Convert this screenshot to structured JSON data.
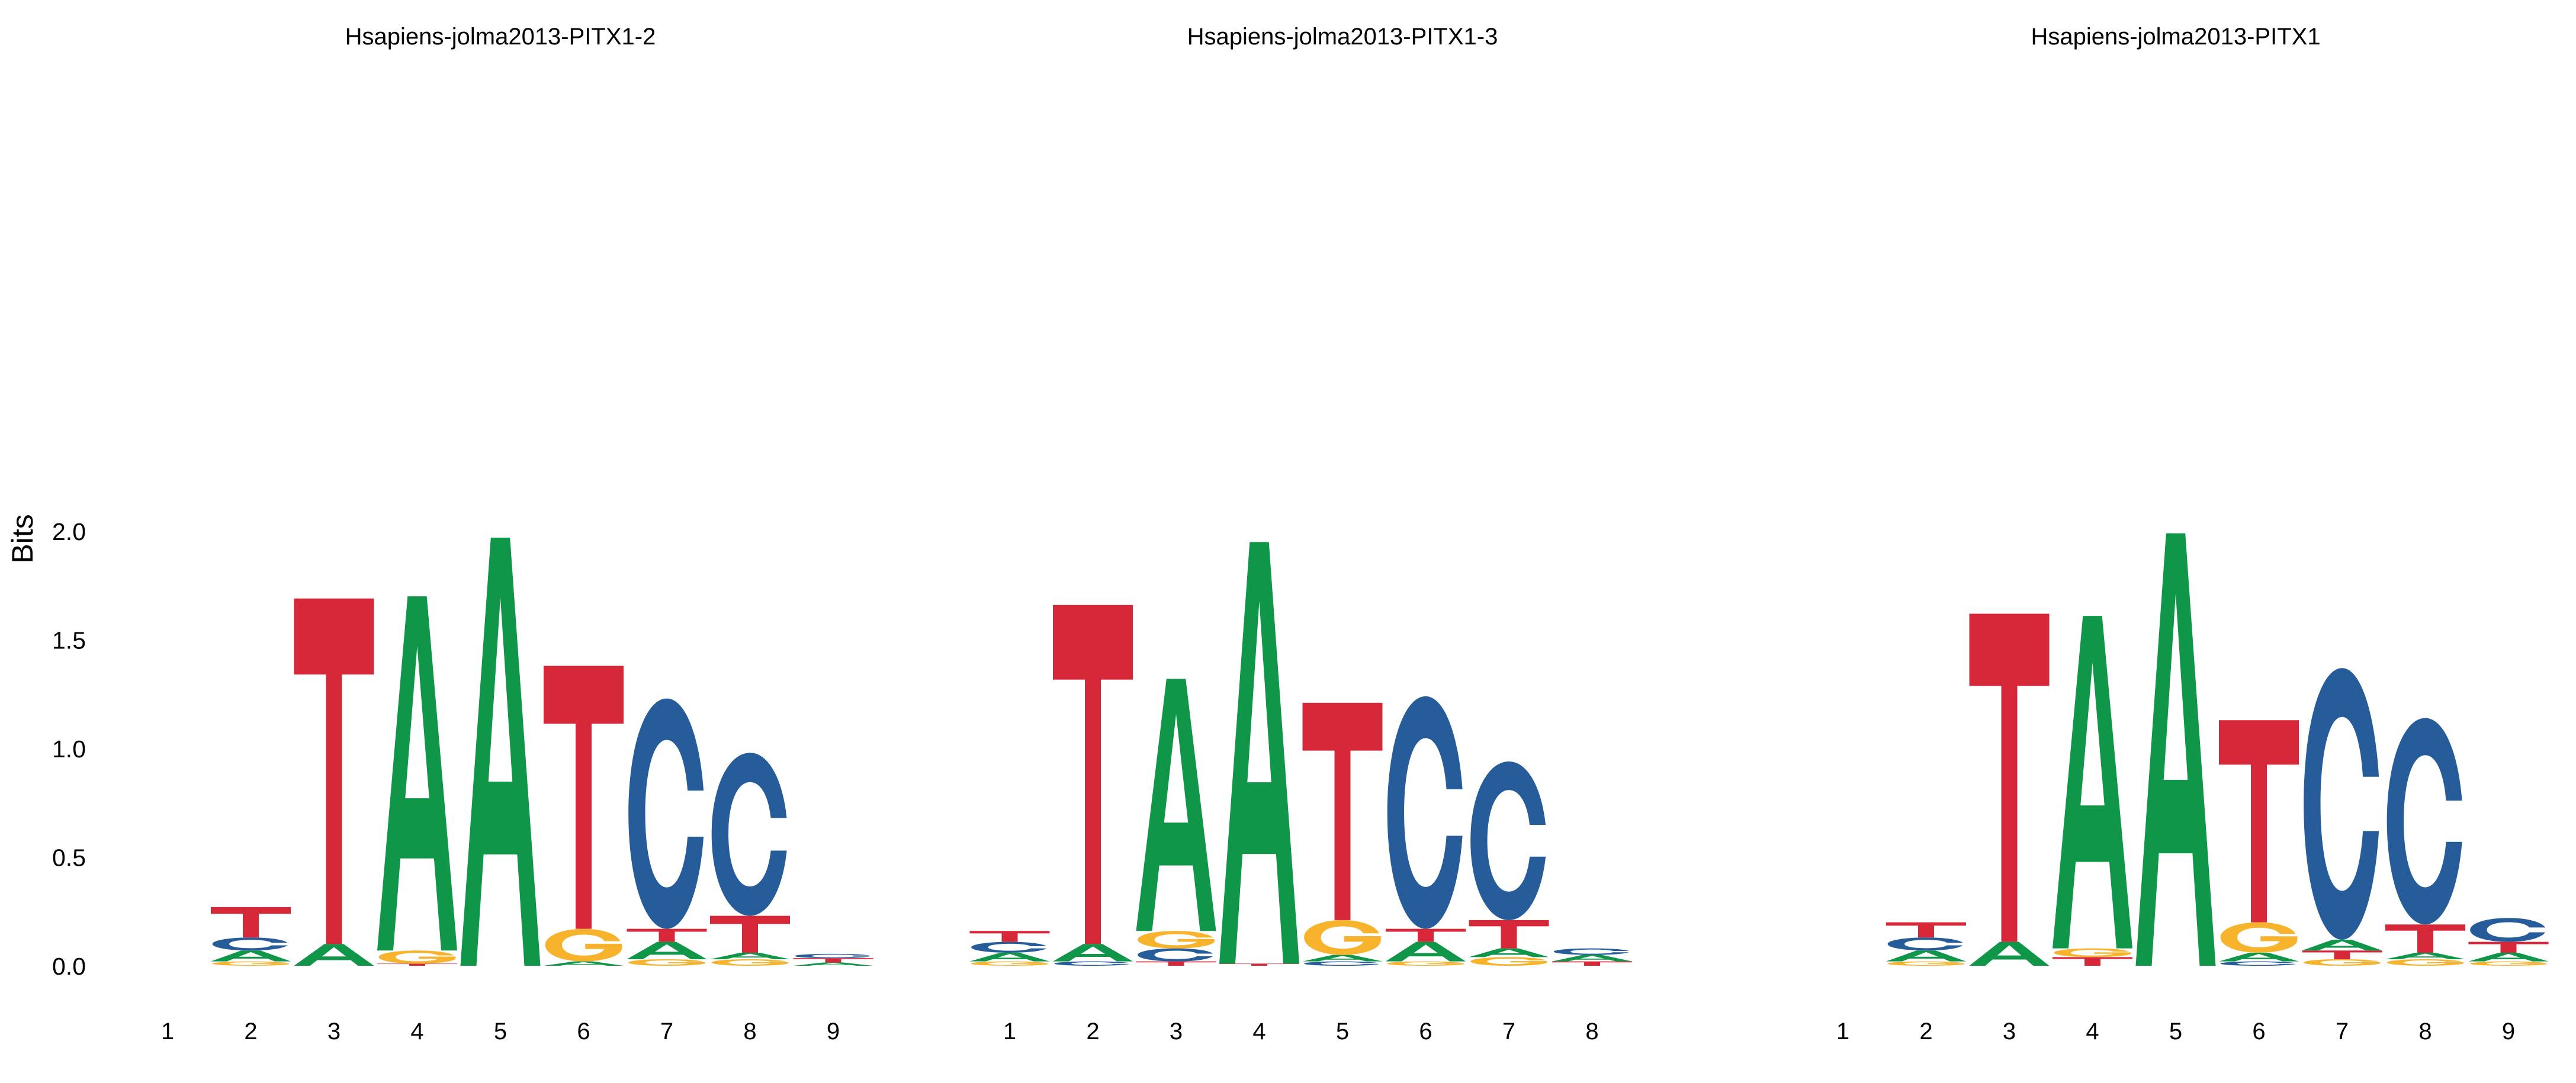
{
  "chart_data": {
    "type": "sequence-logo",
    "ylabel": "Bits",
    "ylim": [
      0,
      2
    ],
    "yticks": [
      "0.0",
      "0.5",
      "1.0",
      "1.5",
      "2.0"
    ],
    "colors": {
      "A": "#109648",
      "C": "#255C99",
      "G": "#F7B32B",
      "T": "#D62839"
    },
    "panels": [
      {
        "title": "Hsapiens-jolma2013-PITX1-2",
        "positions": [
          {
            "label": "1",
            "stack": []
          },
          {
            "label": "2",
            "stack": [
              [
                "G",
                0.02
              ],
              [
                "A",
                0.05
              ],
              [
                "C",
                0.06
              ],
              [
                "T",
                0.14
              ]
            ]
          },
          {
            "label": "3",
            "stack": [
              [
                "A",
                0.1
              ],
              [
                "T",
                1.59
              ]
            ]
          },
          {
            "label": "4",
            "stack": [
              [
                "T",
                0.01
              ],
              [
                "G",
                0.06
              ],
              [
                "A",
                1.63
              ]
            ]
          },
          {
            "label": "5",
            "stack": [
              [
                "A",
                1.97
              ]
            ]
          },
          {
            "label": "6",
            "stack": [
              [
                "A",
                0.02
              ],
              [
                "G",
                0.15
              ],
              [
                "T",
                1.21
              ]
            ]
          },
          {
            "label": "7",
            "stack": [
              [
                "G",
                0.03
              ],
              [
                "A",
                0.08
              ],
              [
                "T",
                0.06
              ],
              [
                "C",
                1.06
              ]
            ]
          },
          {
            "label": "8",
            "stack": [
              [
                "G",
                0.03
              ],
              [
                "A",
                0.03
              ],
              [
                "T",
                0.17
              ],
              [
                "C",
                0.75
              ]
            ]
          },
          {
            "label": "9",
            "stack": [
              [
                "A",
                0.015
              ],
              [
                "T",
                0.02
              ],
              [
                "C",
                0.02
              ]
            ]
          }
        ]
      },
      {
        "title": "Hsapiens-jolma2013-PITX1-3",
        "positions": [
          {
            "label": "1",
            "stack": [
              [
                "G",
                0.02
              ],
              [
                "A",
                0.04
              ],
              [
                "C",
                0.05
              ],
              [
                "T",
                0.05
              ]
            ]
          },
          {
            "label": "2",
            "stack": [
              [
                "C",
                0.02
              ],
              [
                "A",
                0.08
              ],
              [
                "T",
                1.56
              ]
            ]
          },
          {
            "label": "3",
            "stack": [
              [
                "T",
                0.02
              ],
              [
                "C",
                0.06
              ],
              [
                "G",
                0.08
              ],
              [
                "A",
                1.16
              ]
            ]
          },
          {
            "label": "4",
            "stack": [
              [
                "T",
                0.01
              ],
              [
                "A",
                1.94
              ]
            ]
          },
          {
            "label": "5",
            "stack": [
              [
                "C",
                0.02
              ],
              [
                "A",
                0.03
              ],
              [
                "G",
                0.16
              ],
              [
                "T",
                1.0
              ]
            ]
          },
          {
            "label": "6",
            "stack": [
              [
                "G",
                0.02
              ],
              [
                "A",
                0.09
              ],
              [
                "T",
                0.06
              ],
              [
                "C",
                1.07
              ]
            ]
          },
          {
            "label": "7",
            "stack": [
              [
                "G",
                0.04
              ],
              [
                "A",
                0.04
              ],
              [
                "T",
                0.13
              ],
              [
                "C",
                0.73
              ]
            ]
          },
          {
            "label": "8",
            "stack": [
              [
                "T",
                0.02
              ],
              [
                "A",
                0.03
              ],
              [
                "C",
                0.03
              ]
            ]
          }
        ]
      },
      {
        "title": "Hsapiens-jolma2013-PITX1",
        "positions": [
          {
            "label": "1",
            "stack": []
          },
          {
            "label": "2",
            "stack": [
              [
                "G",
                0.02
              ],
              [
                "A",
                0.05
              ],
              [
                "C",
                0.06
              ],
              [
                "T",
                0.07
              ]
            ]
          },
          {
            "label": "3",
            "stack": [
              [
                "A",
                0.11
              ],
              [
                "T",
                1.51
              ]
            ]
          },
          {
            "label": "4",
            "stack": [
              [
                "T",
                0.04
              ],
              [
                "G",
                0.04
              ],
              [
                "A",
                1.53
              ]
            ]
          },
          {
            "label": "5",
            "stack": [
              [
                "A",
                1.99
              ]
            ]
          },
          {
            "label": "6",
            "stack": [
              [
                "C",
                0.02
              ],
              [
                "A",
                0.04
              ],
              [
                "G",
                0.14
              ],
              [
                "T",
                0.93
              ]
            ]
          },
          {
            "label": "7",
            "stack": [
              [
                "G",
                0.03
              ],
              [
                "T",
                0.04
              ],
              [
                "A",
                0.05
              ],
              [
                "C",
                1.25
              ]
            ]
          },
          {
            "label": "8",
            "stack": [
              [
                "G",
                0.03
              ],
              [
                "A",
                0.03
              ],
              [
                "T",
                0.13
              ],
              [
                "C",
                0.95
              ]
            ]
          },
          {
            "label": "9",
            "stack": [
              [
                "G",
                0.02
              ],
              [
                "A",
                0.04
              ],
              [
                "T",
                0.05
              ],
              [
                "C",
                0.11
              ]
            ]
          }
        ]
      }
    ]
  }
}
